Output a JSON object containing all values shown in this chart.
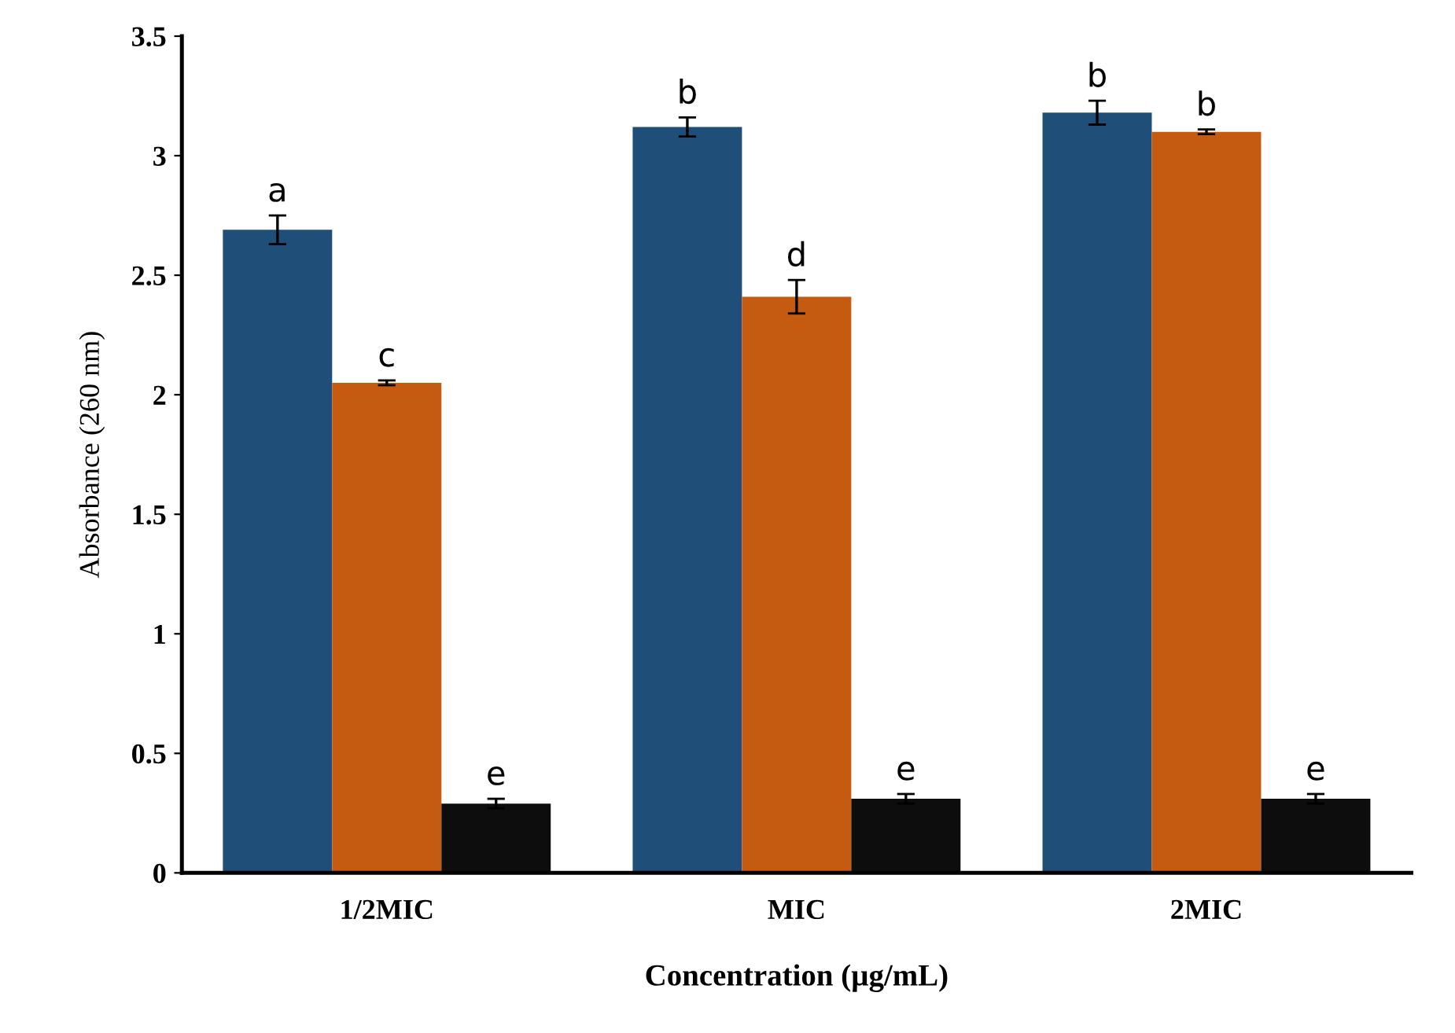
{
  "chart_data": {
    "type": "bar",
    "xlabel": "Concentration (µg/mL)",
    "ylabel": "Absorbance (260 nm)",
    "categories": [
      "1/2MIC",
      "MIC",
      "2MIC"
    ],
    "series": [
      {
        "color": "#1f4e79",
        "values": [
          2.69,
          3.12,
          3.18
        ],
        "errors": [
          0.06,
          0.04,
          0.05
        ],
        "value_labels": [
          "a",
          "b",
          "b"
        ]
      },
      {
        "color": "#c55a11",
        "values": [
          2.05,
          2.41,
          3.1
        ],
        "errors": [
          0.01,
          0.07,
          0.01
        ],
        "value_labels": [
          "c",
          "d",
          "b"
        ]
      },
      {
        "color": "#0d0d0d",
        "values": [
          0.29,
          0.31,
          0.31
        ],
        "errors": [
          0.02,
          0.02,
          0.02
        ],
        "value_labels": [
          "e",
          "e",
          "e"
        ]
      }
    ],
    "ylim": [
      0,
      3.5
    ],
    "yticks": [
      0,
      0.5,
      1,
      1.5,
      2,
      2.5,
      3,
      3.5
    ],
    "grid": false,
    "legend": false
  }
}
